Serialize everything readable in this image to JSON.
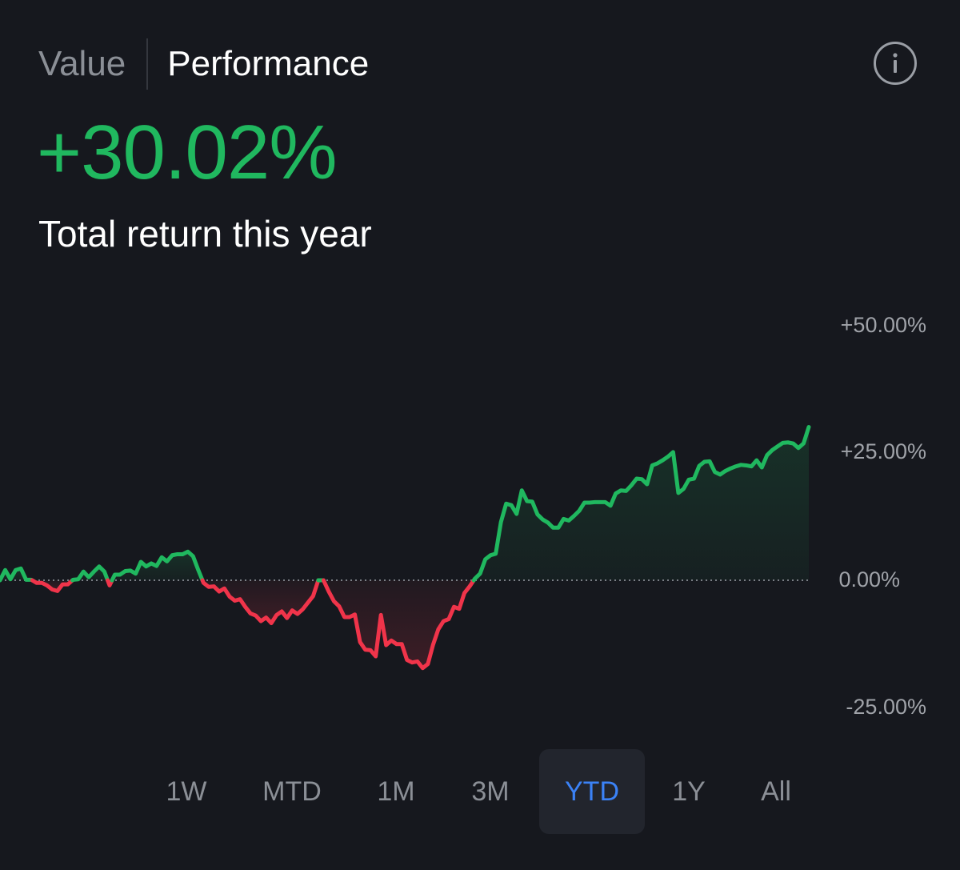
{
  "header": {
    "tabs": [
      {
        "label": "Value",
        "active": false
      },
      {
        "label": "Performance",
        "active": true
      }
    ],
    "info_icon": "info-icon"
  },
  "headline": {
    "value": "+30.02%",
    "caption": "Total return this year"
  },
  "colors": {
    "background": "#16181e",
    "positive": "#20b85f",
    "negative": "#f0344a",
    "accent": "#3b82f6",
    "muted_text": "#8b8f96"
  },
  "chart_data": {
    "type": "line",
    "y_tick_labels": [
      "+50.00%",
      "+25.00%",
      "0.00%",
      "-25.00%"
    ],
    "y_ticks": [
      50,
      25,
      0,
      -25
    ],
    "ylim": [
      -25,
      50
    ],
    "baseline": 0,
    "baseline_style": "dotted",
    "fill_to_baseline": true,
    "series": [
      {
        "values": [
          0,
          2,
          0.2,
          2,
          2.3,
          0.1,
          0.1,
          -0.5,
          -0.5,
          -1,
          -1.8,
          -2.1,
          -0.8,
          -0.8,
          0.1,
          0.2,
          1.7,
          0.6,
          1.7,
          2.7,
          1.7,
          -1,
          1.1,
          1.1,
          1.8,
          1.9,
          1.3,
          3.6,
          2.7,
          3.3,
          2.8,
          4.5,
          3.7,
          4.9,
          5.1,
          5.1,
          5.6,
          4.7,
          2,
          -0.5,
          -1.3,
          -1.2,
          -2.2,
          -1.6,
          -3.2,
          -4,
          -3.7,
          -5.2,
          -6.5,
          -6.9,
          -8,
          -7.3,
          -8.4,
          -6.8,
          -6.1,
          -7.4,
          -5.9,
          -6.6,
          -5.7,
          -4.4,
          -3.1,
          0,
          0,
          -2.2,
          -4.1,
          -5.1,
          -7.2,
          -7.2,
          -6.7,
          -12.1,
          -13.6,
          -13.7,
          -14.9,
          -6.8,
          -12.7,
          -11.8,
          -12.5,
          -12.5,
          -15.6,
          -16.1,
          -15.9,
          -17.2,
          -16.4,
          -12.6,
          -9.6,
          -8,
          -7.6,
          -5.2,
          -5.6,
          -2.5,
          -1.2,
          0.3,
          1.3,
          4.1,
          4.9,
          5.2,
          11.4,
          15,
          14.7,
          13,
          17.6,
          15.5,
          15.4,
          12.9,
          11.9,
          11.3,
          10.3,
          10.3,
          12,
          11.7,
          12.6,
          13.6,
          15.2,
          15.2,
          15.3,
          15.3,
          15.3,
          14.6,
          17,
          17.6,
          17.5,
          18.6,
          19.9,
          19.8,
          18.8,
          22.5,
          22.9,
          23.5,
          24.2,
          25.1,
          17.1,
          17.9,
          19.7,
          19.9,
          22.4,
          23.2,
          23.3,
          21.2,
          20.7,
          21.4,
          21.9,
          22.3,
          22.6,
          22.5,
          22.3,
          23.5,
          22.1,
          24.5,
          25.5,
          26.2,
          26.9,
          27,
          26.8,
          25.9,
          26.8,
          30.02
        ]
      }
    ]
  },
  "time_ranges": {
    "options": [
      "1W",
      "MTD",
      "1M",
      "3M",
      "YTD",
      "1Y",
      "All"
    ],
    "selected": "YTD"
  }
}
